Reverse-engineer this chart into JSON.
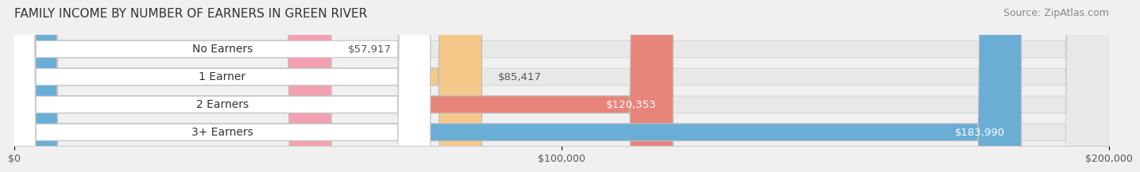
{
  "title": "FAMILY INCOME BY NUMBER OF EARNERS IN GREEN RIVER",
  "source": "Source: ZipAtlas.com",
  "categories": [
    "No Earners",
    "1 Earner",
    "2 Earners",
    "3+ Earners"
  ],
  "values": [
    57917,
    85417,
    120353,
    183990
  ],
  "bar_colors": [
    "#f4a0b0",
    "#f5c98a",
    "#e8857a",
    "#6aaed6"
  ],
  "bar_edge_colors": [
    "#e07090",
    "#e0a050",
    "#cc6060",
    "#4488bb"
  ],
  "label_colors": [
    "#555555",
    "#555555",
    "#ffffff",
    "#ffffff"
  ],
  "value_labels": [
    "$57,917",
    "$85,417",
    "$120,353",
    "$183,990"
  ],
  "xlim": [
    0,
    200000
  ],
  "xticks": [
    0,
    100000,
    200000
  ],
  "xtick_labels": [
    "$0",
    "$100,000",
    "$200,000"
  ],
  "background_color": "#f0f0f0",
  "bar_background_color": "#e8e8e8",
  "title_fontsize": 11,
  "source_fontsize": 9,
  "label_fontsize": 10,
  "value_fontsize": 9.5
}
